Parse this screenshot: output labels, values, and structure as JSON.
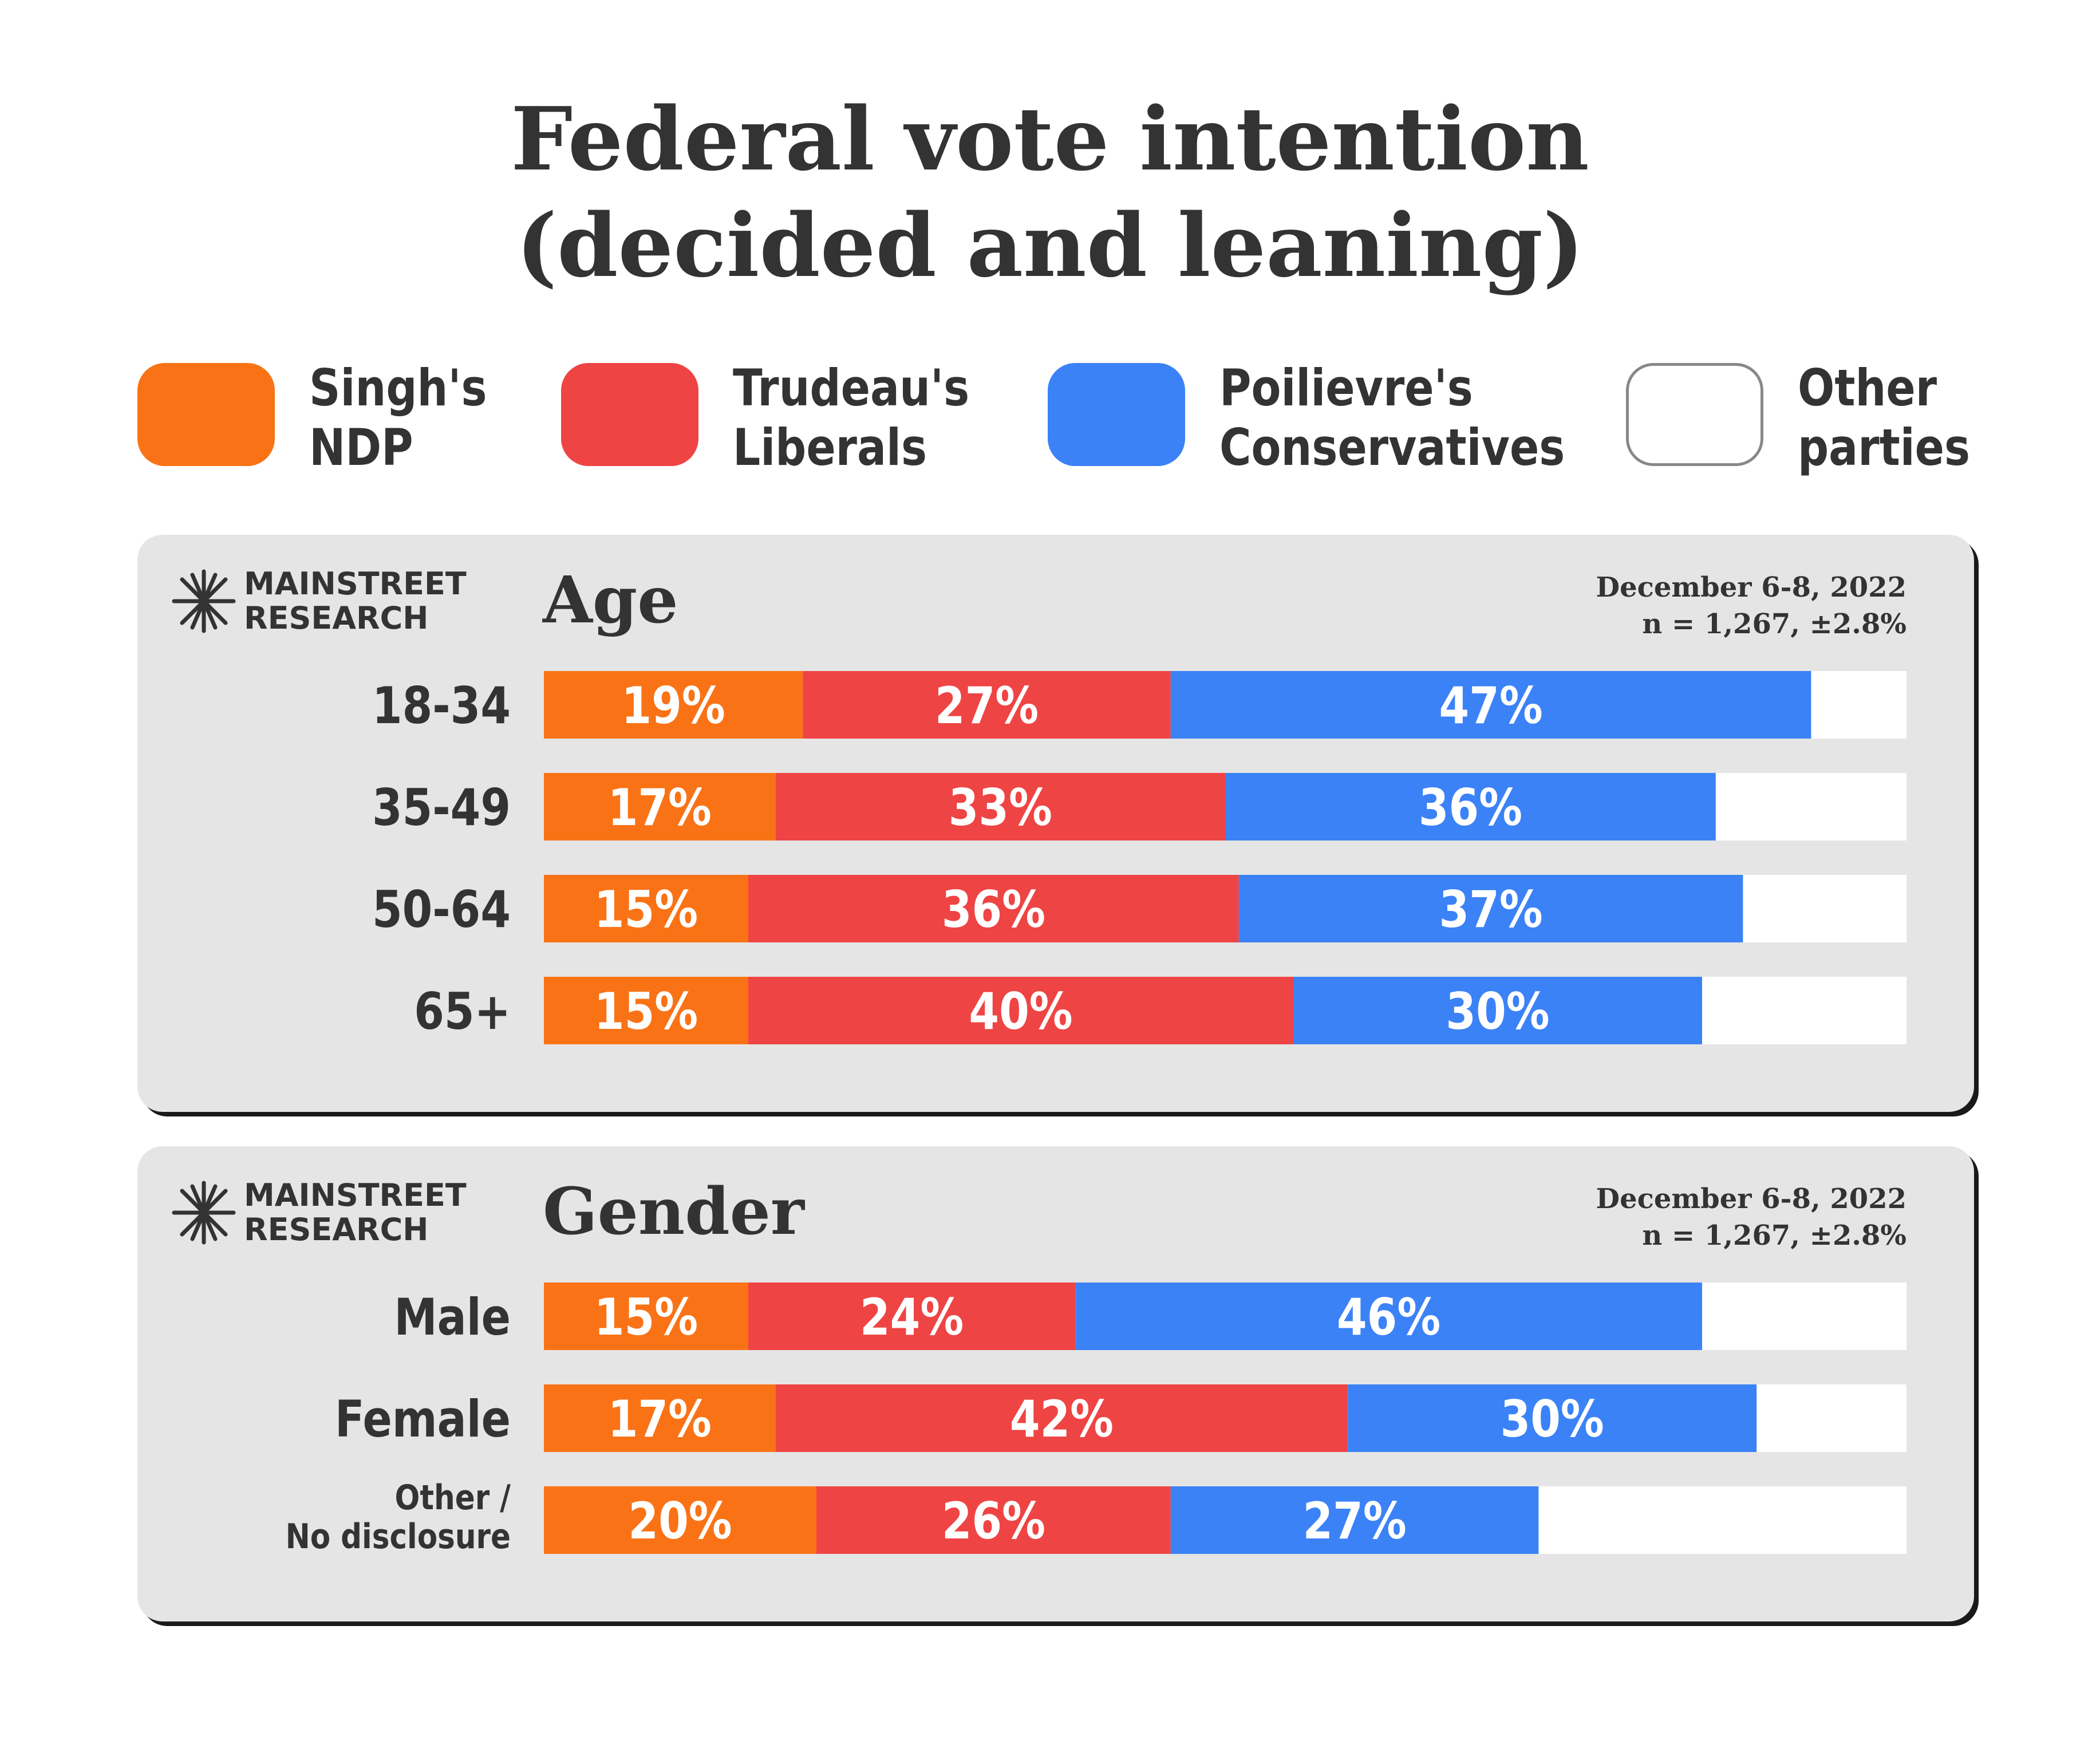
{
  "title_line1": "Federal vote intention",
  "title_line2": "(decided and leaning)",
  "colors": {
    "ndp": "#f97316",
    "liberal": "#ef4444",
    "conservative": "#3b82f6",
    "other": "#ffffff",
    "panel": "#e5e5e5",
    "text": "#333333"
  },
  "legend": [
    {
      "line1": "Singh's",
      "line2": "NDP",
      "color": "#f97316"
    },
    {
      "line1": "Trudeau's",
      "line2": "Liberals",
      "color": "#ef4444"
    },
    {
      "line1": "Poilievre's",
      "line2": "Conservatives",
      "color": "#3b82f6"
    },
    {
      "line1": "Other",
      "line2": "parties",
      "color": "#ffffff"
    }
  ],
  "logo": {
    "line1": "MAINSTREET",
    "line2": "RESEARCH"
  },
  "panels": [
    {
      "heading": "Age",
      "date": "December 6-8, 2022",
      "sample": "n = 1,267, ±2.8%"
    },
    {
      "heading": "Gender",
      "date": "December 6-8, 2022",
      "sample": "n = 1,267, ±2.8%"
    }
  ],
  "chart_data": [
    {
      "type": "bar",
      "stacked": true,
      "orientation": "horizontal",
      "title": "Age",
      "categories": [
        "18-34",
        "35-49",
        "50-64",
        "65+"
      ],
      "series": [
        {
          "name": "Singh's NDP",
          "values": [
            19,
            17,
            15,
            15
          ]
        },
        {
          "name": "Trudeau's Liberals",
          "values": [
            27,
            33,
            36,
            40
          ]
        },
        {
          "name": "Poilievre's Conservatives",
          "values": [
            47,
            36,
            37,
            30
          ]
        }
      ],
      "xlim": [
        0,
        100
      ]
    },
    {
      "type": "bar",
      "stacked": true,
      "orientation": "horizontal",
      "title": "Gender",
      "categories": [
        "Male",
        "Female",
        "Other / No disclosure"
      ],
      "series": [
        {
          "name": "Singh's NDP",
          "values": [
            15,
            17,
            20
          ]
        },
        {
          "name": "Trudeau's Liberals",
          "values": [
            24,
            42,
            26
          ]
        },
        {
          "name": "Poilievre's Conservatives",
          "values": [
            46,
            30,
            27
          ]
        }
      ],
      "xlim": [
        0,
        100
      ]
    }
  ]
}
